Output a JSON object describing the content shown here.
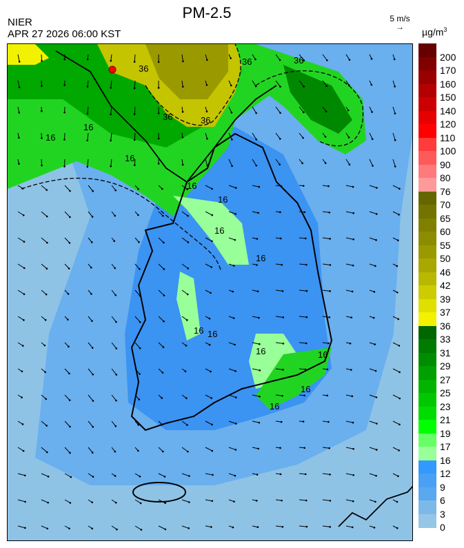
{
  "header": {
    "title": "PM-2.5",
    "agency": "NIER",
    "timestamp": "APR 27 2026 06:00 KST",
    "wind_scale_label": "5 m/s",
    "unit_label": "µg/m",
    "unit_superscript": "3"
  },
  "map": {
    "variable": "PM-2.5",
    "contour_labels": [
      "16",
      "16",
      "16",
      "16",
      "16",
      "16",
      "16",
      "16",
      "16",
      "16",
      "16",
      "16",
      "16",
      "36",
      "36",
      "36",
      "36",
      "36"
    ],
    "wind_arrows": "mostly northwest-to-southeast flow",
    "hotspot_color": "#ff0000"
  },
  "legend": {
    "labels": [
      "200",
      "170",
      "160",
      "150",
      "140",
      "120",
      "110",
      "100",
      "90",
      "80",
      "76",
      "70",
      "65",
      "60",
      "55",
      "50",
      "46",
      "42",
      "39",
      "37",
      "36",
      "33",
      "31",
      "29",
      "27",
      "25",
      "23",
      "21",
      "19",
      "17",
      "16",
      "12",
      "9",
      "6",
      "3",
      "0"
    ],
    "colors": [
      "#660000",
      "#800000",
      "#990000",
      "#b30000",
      "#cc0000",
      "#e60000",
      "#ff0000",
      "#ff3b3b",
      "#ff5a5a",
      "#ff7a7a",
      "#ff9a9a",
      "#666600",
      "#737300",
      "#808000",
      "#8c8c00",
      "#9a9a00",
      "#a8a800",
      "#b8b800",
      "#cccc00",
      "#e0e000",
      "#f2f200",
      "#006600",
      "#007a00",
      "#008c00",
      "#00a000",
      "#00b400",
      "#00c800",
      "#00dc00",
      "#00ff00",
      "#66ff66",
      "#99ff99",
      "#3399ff",
      "#4aa0f4",
      "#5aa8ee",
      "#7db9e8",
      "#96c6e6"
    ]
  }
}
